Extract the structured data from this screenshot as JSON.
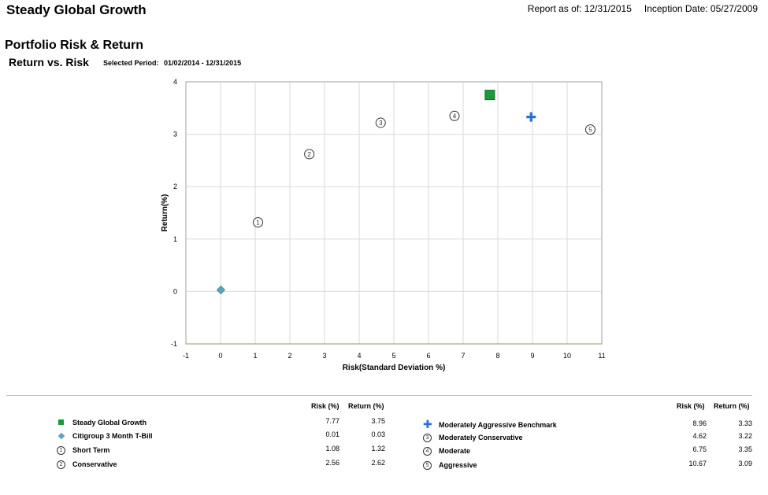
{
  "header": {
    "title": "Steady Global Growth",
    "report_as_of": "Report as of: 12/31/2015",
    "inception": "Inception Date: 05/27/2009"
  },
  "section_title": "Portfolio Risk & Return",
  "chart_title": "Return vs. Risk",
  "period": {
    "label": "Selected Period:",
    "start": "01/02/2014",
    "sep": "-",
    "end": "12/31/2015"
  },
  "legend": {
    "risk_header": "Risk (%)",
    "return_header": "Return (%)",
    "left": [
      {
        "label": "Steady Global Growth",
        "risk": "7.77",
        "ret": "3.75",
        "marker": "square"
      },
      {
        "label": "Citigroup 3 Month T-Bill",
        "risk": "0.01",
        "ret": "0.03",
        "marker": "diamond"
      },
      {
        "label": "Short Term",
        "risk": "1.08",
        "ret": "1.32",
        "marker": "1"
      },
      {
        "label": "Conservative",
        "risk": "2.56",
        "ret": "2.62",
        "marker": "2"
      }
    ],
    "right": [
      {
        "label": "Moderately Aggressive Benchmark",
        "risk": "8.96",
        "ret": "3.33",
        "marker": "plus"
      },
      {
        "label": "Moderately Conservative",
        "risk": "4.62",
        "ret": "3.22",
        "marker": "3"
      },
      {
        "label": "Moderate",
        "risk": "6.75",
        "ret": "3.35",
        "marker": "4"
      },
      {
        "label": "Aggressive",
        "risk": "10.67",
        "ret": "3.09",
        "marker": "5"
      }
    ]
  },
  "colors": {
    "square": "#1a9a3a",
    "diamond": "#5ba3bf",
    "plus": "#2b6fd6",
    "circle": "#333333",
    "grid": "#d8d8d8"
  },
  "chart_data": {
    "type": "scatter",
    "title": "Return vs. Risk",
    "xlabel": "Risk(Standard Deviation %)",
    "ylabel": "Return(%)",
    "xlim": [
      -1,
      11
    ],
    "ylim": [
      -1,
      4
    ],
    "xticks": [
      "-1",
      "0",
      "1",
      "2",
      "3",
      "4",
      "5",
      "6",
      "7",
      "8",
      "9",
      "10",
      "11"
    ],
    "yticks": [
      "-1",
      "0",
      "1",
      "2",
      "3",
      "4"
    ],
    "grid": true,
    "points": [
      {
        "name": "Steady Global Growth",
        "x": 7.77,
        "y": 3.75,
        "marker": "square"
      },
      {
        "name": "Citigroup 3 Month T-Bill",
        "x": 0.01,
        "y": 0.03,
        "marker": "diamond"
      },
      {
        "name": "Short Term",
        "x": 1.08,
        "y": 1.32,
        "marker": "1"
      },
      {
        "name": "Conservative",
        "x": 2.56,
        "y": 2.62,
        "marker": "2"
      },
      {
        "name": "Moderately Aggressive Benchmark",
        "x": 8.96,
        "y": 3.33,
        "marker": "plus"
      },
      {
        "name": "Moderately Conservative",
        "x": 4.62,
        "y": 3.22,
        "marker": "3"
      },
      {
        "name": "Moderate",
        "x": 6.75,
        "y": 3.35,
        "marker": "4"
      },
      {
        "name": "Aggressive",
        "x": 10.67,
        "y": 3.09,
        "marker": "5"
      }
    ]
  }
}
